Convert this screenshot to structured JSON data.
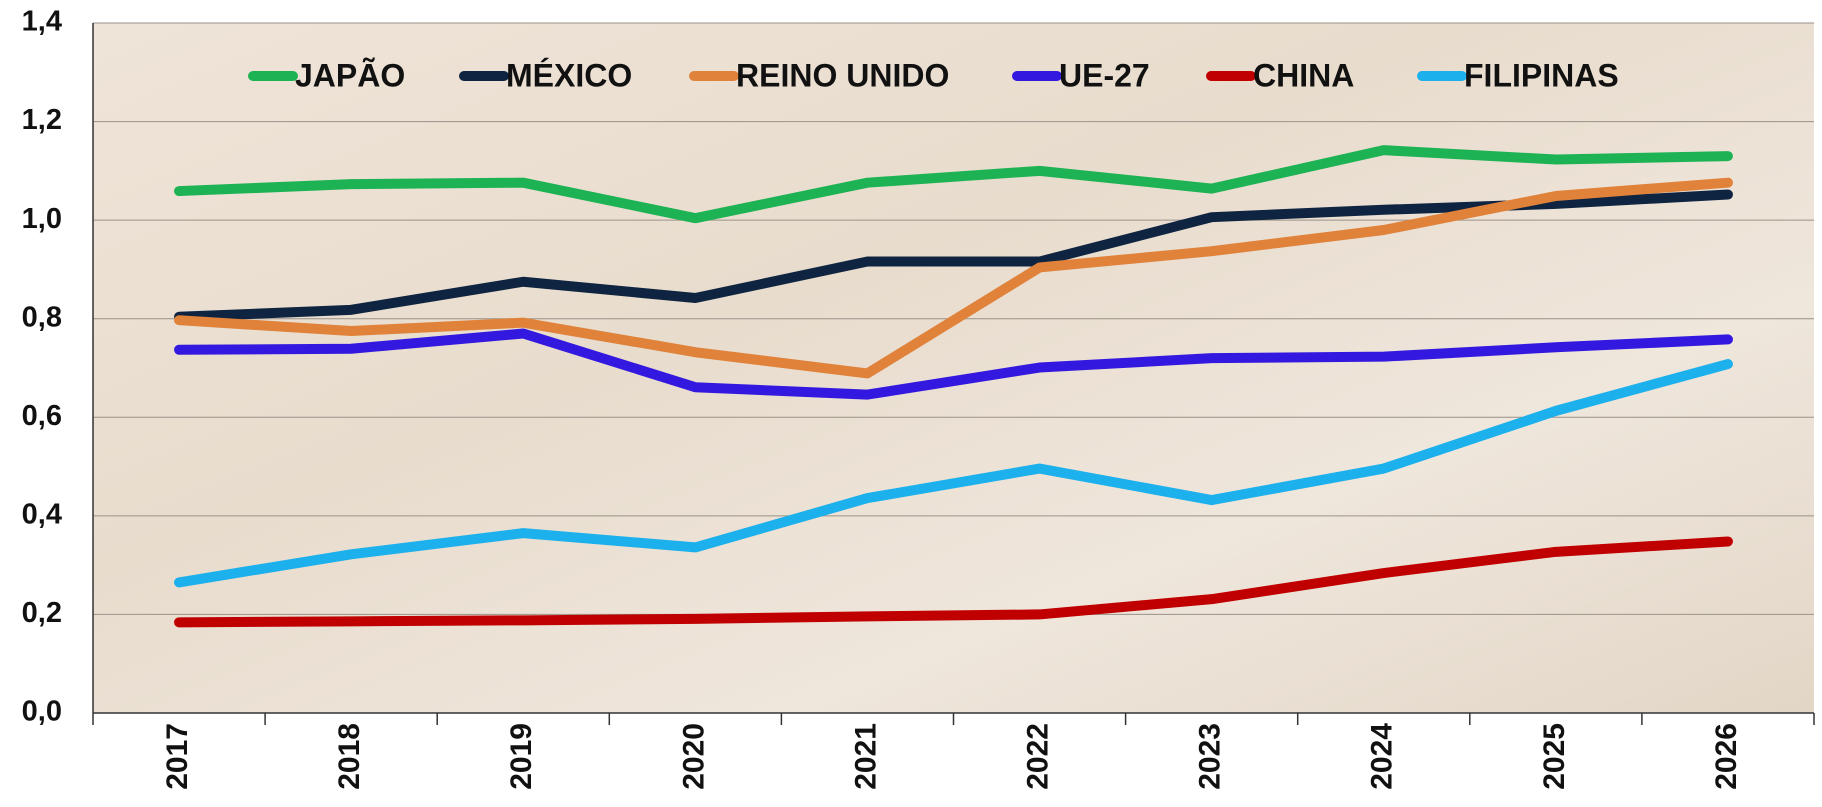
{
  "chart_data": {
    "type": "line",
    "categories": [
      "2017",
      "2018",
      "2019",
      "2020",
      "2021",
      "2022",
      "2023",
      "2024",
      "2025",
      "2026"
    ],
    "series": [
      {
        "name": "JAPÃO",
        "color": "#1db354",
        "values": [
          1.059,
          1.073,
          1.076,
          1.004,
          1.076,
          1.1,
          1.064,
          1.142,
          1.123,
          1.13
        ]
      },
      {
        "name": "MÉXICO",
        "color": "#0f2440",
        "values": [
          0.804,
          0.818,
          0.875,
          0.842,
          0.916,
          0.916,
          1.006,
          1.021,
          1.033,
          1.052
        ]
      },
      {
        "name": "REINO UNIDO",
        "color": "#e0823a",
        "values": [
          0.797,
          0.775,
          0.792,
          0.732,
          0.689,
          0.904,
          0.937,
          0.98,
          1.049,
          1.076
        ]
      },
      {
        "name": "UE-27",
        "color": "#3318e0",
        "values": [
          0.737,
          0.739,
          0.77,
          0.661,
          0.646,
          0.701,
          0.72,
          0.723,
          0.742,
          0.758
        ]
      },
      {
        "name": "CHINA",
        "color": "#c00000",
        "values": [
          0.184,
          0.186,
          0.188,
          0.191,
          0.196,
          0.2,
          0.231,
          0.284,
          0.327,
          0.348
        ]
      },
      {
        "name": "FILIPINAS",
        "color": "#1cb0ec",
        "values": [
          0.265,
          0.322,
          0.365,
          0.336,
          0.436,
          0.496,
          0.432,
          0.496,
          0.613,
          0.708
        ]
      }
    ],
    "ylim": [
      0,
      1.4
    ],
    "yticks": [
      {
        "value": 0,
        "label": "0,0"
      },
      {
        "value": 0.2,
        "label": "0,2"
      },
      {
        "value": 0.4,
        "label": "0,4"
      },
      {
        "value": 0.6,
        "label": "0,6"
      },
      {
        "value": 0.8,
        "label": "0,8"
      },
      {
        "value": 1,
        "label": "1,0"
      },
      {
        "value": 1.2,
        "label": "1,2"
      },
      {
        "value": 1.4,
        "label": "1,4"
      }
    ],
    "grid": true,
    "legend": "top"
  }
}
